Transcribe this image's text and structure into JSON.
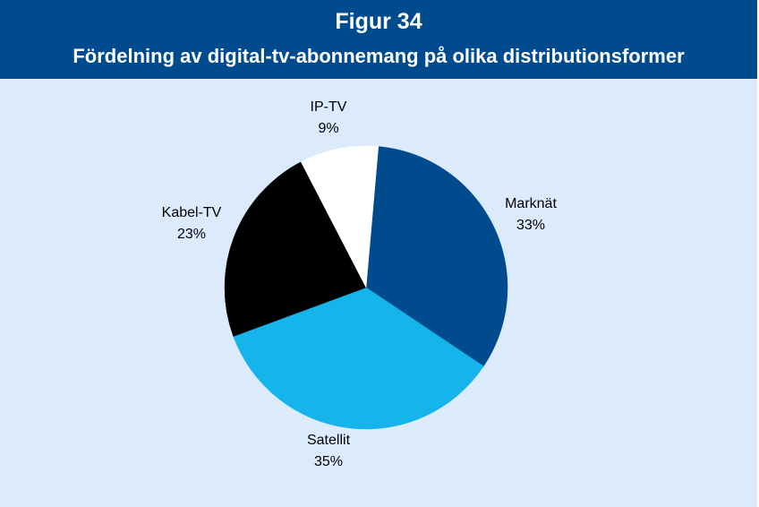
{
  "header": {
    "figure_label": "Figur 34",
    "title": "Fördelning av digital-tv-abonnemang på olika distributionsformer"
  },
  "colors": {
    "header_bg": "#004b8e",
    "plot_bg": "#dcebfb"
  },
  "chart_data": {
    "type": "pie",
    "title": "Fördelning av digital-tv-abonnemang på olika distributionsformer",
    "slices": [
      {
        "label": "Marknät",
        "value": 33,
        "display": "33%",
        "color": "#004b8e"
      },
      {
        "label": "Satellit",
        "value": 35,
        "display": "35%",
        "color": "#15b4ea"
      },
      {
        "label": "Kabel-TV",
        "value": 23,
        "display": "23%",
        "color": "#000000"
      },
      {
        "label": "IP-TV",
        "value": 9,
        "display": "9%",
        "color": "#ffffff"
      }
    ],
    "start_angle_deg": 5,
    "direction": "clockwise",
    "legend": "none",
    "data_labels": "outside"
  }
}
